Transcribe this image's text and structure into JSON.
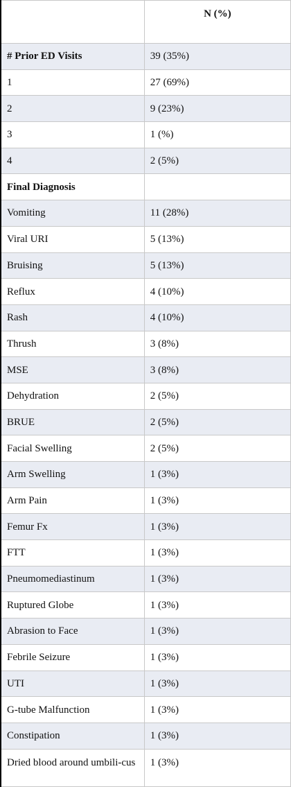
{
  "table": {
    "column": "N (%)",
    "rows": [
      {
        "label": "# Prior ED Visits",
        "value": "39 (35%)",
        "section": true
      },
      {
        "label": "1",
        "value": "27 (69%)"
      },
      {
        "label": "2",
        "value": "9 (23%)"
      },
      {
        "label": "3",
        "value": "1 (%)"
      },
      {
        "label": "4",
        "value": "2 (5%)"
      },
      {
        "label": "Final Diagnosis",
        "section": true
      },
      {
        "label": "Vomiting",
        "value": "11 (28%)"
      },
      {
        "label": "Viral URI",
        "value": "5 (13%)"
      },
      {
        "label": "Bruising",
        "value": "5 (13%)"
      },
      {
        "label": "Reflux",
        "value": "4 (10%)"
      },
      {
        "label": "Rash",
        "value": "4 (10%)"
      },
      {
        "label": "Thrush",
        "value": "3 (8%)"
      },
      {
        "label": "MSE",
        "value": "3 (8%)"
      },
      {
        "label": "Dehydration",
        "value": "2 (5%)"
      },
      {
        "label": "BRUE",
        "value": "2 (5%)"
      },
      {
        "label": "Facial Swelling",
        "value": "2 (5%)"
      },
      {
        "label": "Arm Swelling",
        "value": "1 (3%)"
      },
      {
        "label": "Arm Pain",
        "value": "1 (3%)"
      },
      {
        "label": "Femur Fx",
        "value": "1 (3%)"
      },
      {
        "label": "FTT",
        "value": "1 (3%)"
      },
      {
        "label": "Pneumomediastinum",
        "value": "1 (3%)"
      },
      {
        "label": "Ruptured Globe",
        "value": "1 (3%)"
      },
      {
        "label": "Abrasion to Face",
        "value": "1 (3%)"
      },
      {
        "label": "Febrile Seizure",
        "value": "1 (3%)"
      },
      {
        "label": "UTI",
        "value": "1 (3%)"
      },
      {
        "label": "G-tube Malfunction",
        "value": "1 (3%)"
      },
      {
        "label": "Constipation",
        "value": "1 (3%)"
      },
      {
        "label": "Dried blood around umbili-cus",
        "value": "1 (3%)"
      }
    ]
  }
}
